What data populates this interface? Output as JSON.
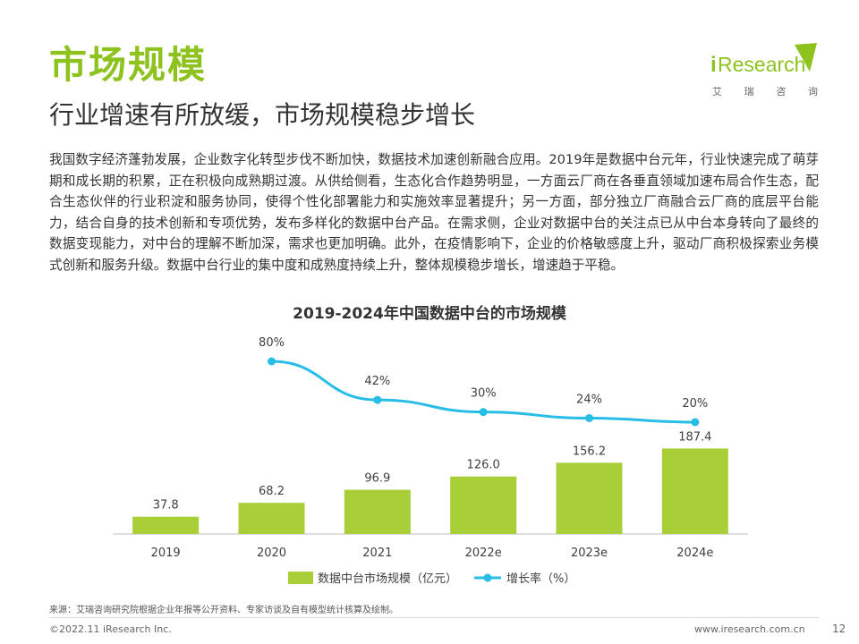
{
  "header": {
    "title": "市场规模",
    "subtitle": "行业增速有所放缓，市场规模稳步增长"
  },
  "logo": {
    "text_i": "i",
    "text_rest": "Research",
    "chinese": [
      "艾",
      "瑞",
      "咨",
      "询"
    ],
    "color": "#8dc21f"
  },
  "body_text": "我国数字经济蓬勃发展，企业数字化转型步伐不断加快，数据技术加速创新融合应用。2019年是数据中台元年，行业快速完成了萌芽期和成长期的积累，正在积极向成熟期过渡。从供给侧看，生态化合作趋势明显，一方面云厂商在各垂直领域加速布局合作生态，配合生态伙伴的行业积淀和服务协同，使得个性化部署能力和实施效率显著提升；另一方面，部分独立厂商融合云厂商的底层平台能力，结合自身的技术创新和专项优势，发布多样化的数据中台产品。在需求侧，企业对数据中台的关注点已从中台本身转向了最终的数据变现能力，对中台的理解不断加深，需求也更加明确。此外，在疫情影响下，企业的价格敏感度上升，驱动厂商积极探索业务模式创新和服务升级。数据中台行业的集中度和成熟度持续上升，整体规模稳步增长，增速趋于平稳。",
  "chart_data": {
    "type": "bar",
    "title": "2019-2024年中国数据中台的市场规模",
    "categories": [
      "2019",
      "2020",
      "2021",
      "2022e",
      "2023e",
      "2024e"
    ],
    "series": [
      {
        "name": "数据中台市场规模（亿元）",
        "type": "bar",
        "values": [
          37.8,
          68.2,
          96.9,
          126.0,
          156.2,
          187.4
        ],
        "labels": [
          "37.8",
          "68.2",
          "96.9",
          "126.0",
          "156.2",
          "187.4"
        ],
        "color": "#a9cf38"
      },
      {
        "name": "增长率（%）",
        "type": "line",
        "values": [
          null,
          80,
          42,
          30,
          24,
          20
        ],
        "labels": [
          "",
          "80%",
          "42%",
          "30%",
          "24%",
          "20%"
        ],
        "color": "#27bde6"
      }
    ],
    "legend_position": "bottom",
    "grid": false
  },
  "footer": {
    "source": "来源：艾瑞咨询研究院根据企业年报等公开资料、专家访谈及自有模型统计核算及绘制。",
    "copyright": "©2022.11 iResearch Inc.",
    "website": "www.iresearch.com.cn",
    "page_number": "12"
  }
}
